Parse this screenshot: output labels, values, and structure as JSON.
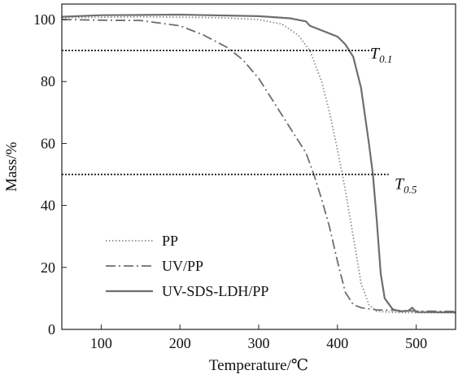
{
  "chart_data": {
    "type": "line",
    "title": "",
    "xlabel": "Temperature/℃",
    "ylabel": "Mass/%",
    "xlim": [
      50,
      550
    ],
    "ylim": [
      0,
      105
    ],
    "xticks": [
      100,
      200,
      300,
      400,
      500
    ],
    "yticks": [
      0,
      20,
      40,
      60,
      80,
      100
    ],
    "grid": false,
    "legend_position": "bottom-left",
    "series": [
      {
        "name": "PP",
        "style": "dotted",
        "color": "#8c8c8c",
        "points": [
          [
            50,
            100.6
          ],
          [
            150,
            100.9
          ],
          [
            250,
            100.6
          ],
          [
            300,
            100.0
          ],
          [
            330,
            98.5
          ],
          [
            350,
            95.0
          ],
          [
            365,
            90.0
          ],
          [
            380,
            80.0
          ],
          [
            390,
            70.0
          ],
          [
            400,
            58.0
          ],
          [
            410,
            45.0
          ],
          [
            420,
            30.0
          ],
          [
            430,
            15.0
          ],
          [
            440,
            8.0
          ],
          [
            450,
            5.8
          ],
          [
            480,
            5.4
          ],
          [
            550,
            5.3
          ]
        ]
      },
      {
        "name": "UV/PP",
        "style": "dash-dot",
        "color": "#6e6e6e",
        "points": [
          [
            50,
            100.0
          ],
          [
            100,
            99.8
          ],
          [
            150,
            99.7
          ],
          [
            200,
            98.0
          ],
          [
            230,
            95.0
          ],
          [
            260,
            91.0
          ],
          [
            280,
            87.0
          ],
          [
            300,
            81.0
          ],
          [
            320,
            73.0
          ],
          [
            340,
            65.0
          ],
          [
            360,
            57.0
          ],
          [
            370,
            50.0
          ],
          [
            380,
            42.0
          ],
          [
            390,
            33.0
          ],
          [
            400,
            22.0
          ],
          [
            410,
            12.0
          ],
          [
            420,
            8.0
          ],
          [
            430,
            7.0
          ],
          [
            450,
            6.3
          ],
          [
            500,
            5.9
          ],
          [
            550,
            5.8
          ]
        ]
      },
      {
        "name": "UV-SDS-LDH/PP",
        "style": "solid",
        "color": "#6e6e6e",
        "points": [
          [
            50,
            100.9
          ],
          [
            100,
            101.4
          ],
          [
            200,
            101.6
          ],
          [
            300,
            101.1
          ],
          [
            340,
            100.4
          ],
          [
            360,
            99.4
          ],
          [
            365,
            98.0
          ],
          [
            380,
            96.5
          ],
          [
            390,
            95.5
          ],
          [
            400,
            94.5
          ],
          [
            410,
            92.0
          ],
          [
            420,
            88.0
          ],
          [
            430,
            78.0
          ],
          [
            440,
            60.0
          ],
          [
            445,
            50.0
          ],
          [
            450,
            35.0
          ],
          [
            455,
            18.0
          ],
          [
            460,
            10.0
          ],
          [
            470,
            6.5
          ],
          [
            480,
            5.8
          ],
          [
            490,
            6.0
          ],
          [
            495,
            7.0
          ],
          [
            500,
            5.6
          ],
          [
            550,
            5.5
          ]
        ]
      }
    ],
    "reference_lines": [
      {
        "label_main": "T",
        "label_sub": "0.1",
        "y": 90,
        "x_range": [
          50,
          445
        ]
      },
      {
        "label_main": "T",
        "label_sub": "0.5",
        "y": 50,
        "x_range": [
          50,
          465
        ]
      }
    ]
  }
}
